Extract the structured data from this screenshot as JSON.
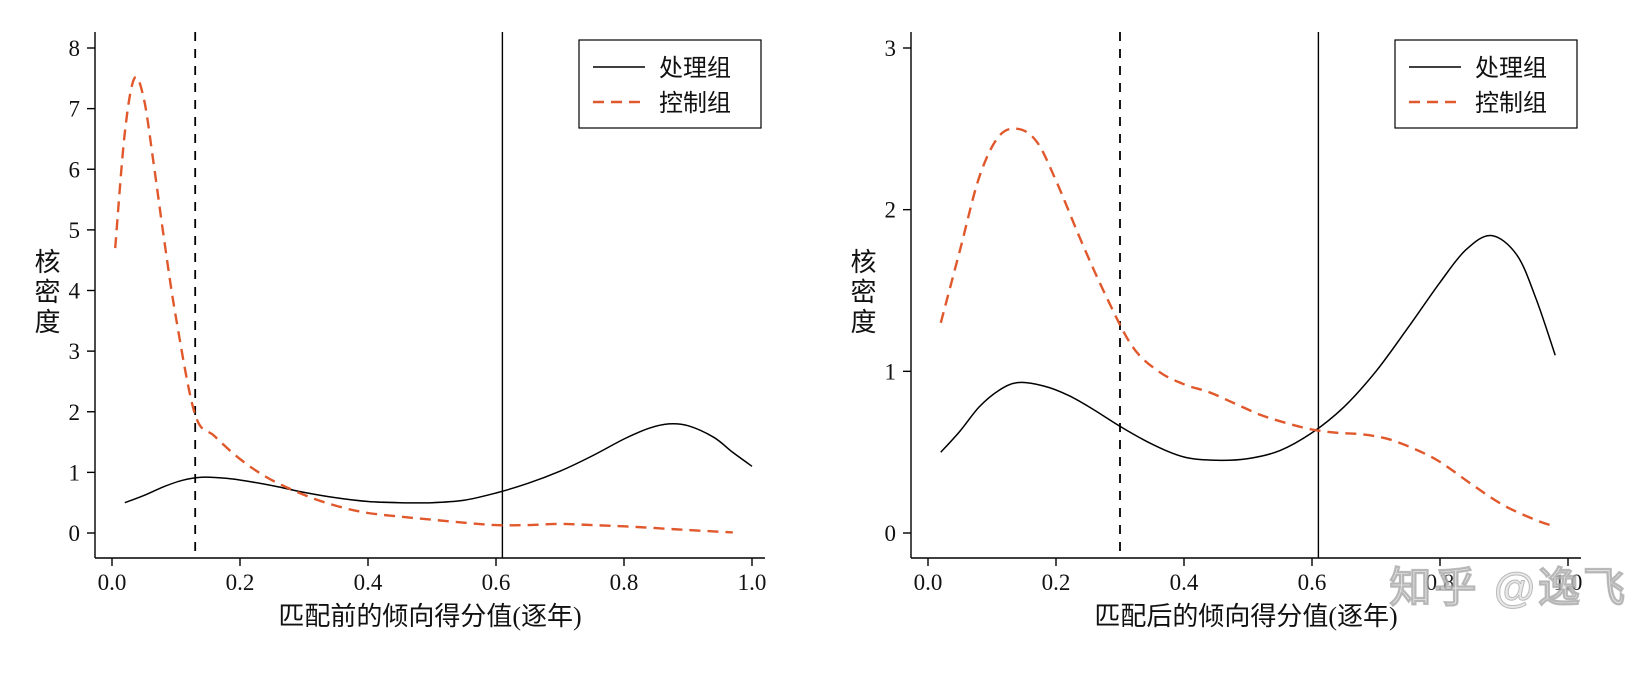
{
  "watermark": "知乎 @逸飞",
  "colors": {
    "treatment": "#000000",
    "control": "#e0582c",
    "axis": "#000000",
    "background": "#ffffff"
  },
  "chart_data": [
    {
      "type": "line",
      "xlabel": "匹配前的倾向得分值(逐年)",
      "ylabel": "核密度",
      "xlim": [
        0,
        1
      ],
      "ylim": [
        0,
        8
      ],
      "xticks": [
        0,
        0.2,
        0.4,
        0.6,
        0.8,
        1
      ],
      "xtick_labels": [
        "0.0",
        "0.2",
        "0.4",
        "0.6",
        "0.8",
        "1.0"
      ],
      "yticks": [
        0,
        1,
        2,
        3,
        4,
        5,
        6,
        7,
        8
      ],
      "grid": false,
      "legend_position": "top-right",
      "legend_entries": [
        "处理组",
        "控制组"
      ],
      "reference_lines": [
        {
          "x": 0.13,
          "style": "dashed",
          "color": "#000000"
        },
        {
          "x": 0.61,
          "style": "solid",
          "color": "#000000"
        }
      ],
      "series": [
        {
          "name": "处理组",
          "line": "solid",
          "color": "#000000",
          "x": [
            0.02,
            0.05,
            0.08,
            0.11,
            0.14,
            0.18,
            0.22,
            0.26,
            0.3,
            0.35,
            0.4,
            0.45,
            0.5,
            0.55,
            0.6,
            0.65,
            0.7,
            0.75,
            0.8,
            0.84,
            0.87,
            0.9,
            0.94,
            0.97,
            1.0
          ],
          "y": [
            0.5,
            0.62,
            0.76,
            0.87,
            0.92,
            0.9,
            0.84,
            0.76,
            0.67,
            0.58,
            0.52,
            0.5,
            0.5,
            0.54,
            0.66,
            0.82,
            1.02,
            1.27,
            1.55,
            1.73,
            1.8,
            1.77,
            1.58,
            1.33,
            1.1
          ]
        },
        {
          "name": "控制组",
          "line": "dashed",
          "color": "#e0582c",
          "x": [
            0.005,
            0.02,
            0.035,
            0.05,
            0.065,
            0.08,
            0.1,
            0.13,
            0.16,
            0.2,
            0.24,
            0.28,
            0.32,
            0.36,
            0.4,
            0.45,
            0.5,
            0.55,
            0.6,
            0.65,
            0.7,
            0.75,
            0.8,
            0.85,
            0.9,
            0.95,
            0.97
          ],
          "y": [
            4.7,
            6.6,
            7.5,
            7.15,
            6.1,
            4.95,
            3.55,
            1.95,
            1.6,
            1.22,
            0.93,
            0.72,
            0.55,
            0.42,
            0.33,
            0.27,
            0.22,
            0.17,
            0.13,
            0.13,
            0.15,
            0.13,
            0.11,
            0.08,
            0.05,
            0.02,
            0.01
          ]
        }
      ]
    },
    {
      "type": "line",
      "xlabel": "匹配后的倾向得分值(逐年)",
      "ylabel": "核密度",
      "xlim": [
        0,
        1
      ],
      "ylim": [
        0,
        3
      ],
      "xticks": [
        0,
        0.2,
        0.4,
        0.6,
        0.8,
        1
      ],
      "xtick_labels": [
        "0.0",
        "0.2",
        "0.4",
        "0.6",
        "0.8",
        "1.0"
      ],
      "yticks": [
        0,
        1,
        2,
        3
      ],
      "grid": false,
      "legend_position": "top-right",
      "legend_entries": [
        "处理组",
        "控制组"
      ],
      "reference_lines": [
        {
          "x": 0.3,
          "style": "dashed",
          "color": "#000000"
        },
        {
          "x": 0.61,
          "style": "solid",
          "color": "#000000"
        }
      ],
      "series": [
        {
          "name": "处理组",
          "line": "solid",
          "color": "#000000",
          "x": [
            0.02,
            0.05,
            0.08,
            0.11,
            0.14,
            0.18,
            0.22,
            0.26,
            0.3,
            0.35,
            0.4,
            0.45,
            0.5,
            0.55,
            0.6,
            0.65,
            0.7,
            0.75,
            0.8,
            0.84,
            0.88,
            0.92,
            0.95,
            0.98
          ],
          "y": [
            0.5,
            0.63,
            0.78,
            0.88,
            0.93,
            0.91,
            0.85,
            0.76,
            0.66,
            0.55,
            0.47,
            0.45,
            0.46,
            0.51,
            0.62,
            0.78,
            1.0,
            1.27,
            1.55,
            1.75,
            1.84,
            1.72,
            1.45,
            1.1
          ]
        },
        {
          "name": "控制组",
          "line": "dashed",
          "color": "#e0582c",
          "x": [
            0.02,
            0.05,
            0.08,
            0.11,
            0.14,
            0.17,
            0.2,
            0.24,
            0.28,
            0.32,
            0.36,
            0.4,
            0.44,
            0.48,
            0.52,
            0.56,
            0.6,
            0.64,
            0.68,
            0.72,
            0.76,
            0.8,
            0.85,
            0.9,
            0.95,
            0.98
          ],
          "y": [
            1.3,
            1.75,
            2.2,
            2.45,
            2.5,
            2.42,
            2.18,
            1.8,
            1.45,
            1.15,
            1.0,
            0.92,
            0.87,
            0.8,
            0.73,
            0.68,
            0.64,
            0.62,
            0.61,
            0.58,
            0.52,
            0.44,
            0.3,
            0.17,
            0.08,
            0.04
          ]
        }
      ]
    }
  ]
}
